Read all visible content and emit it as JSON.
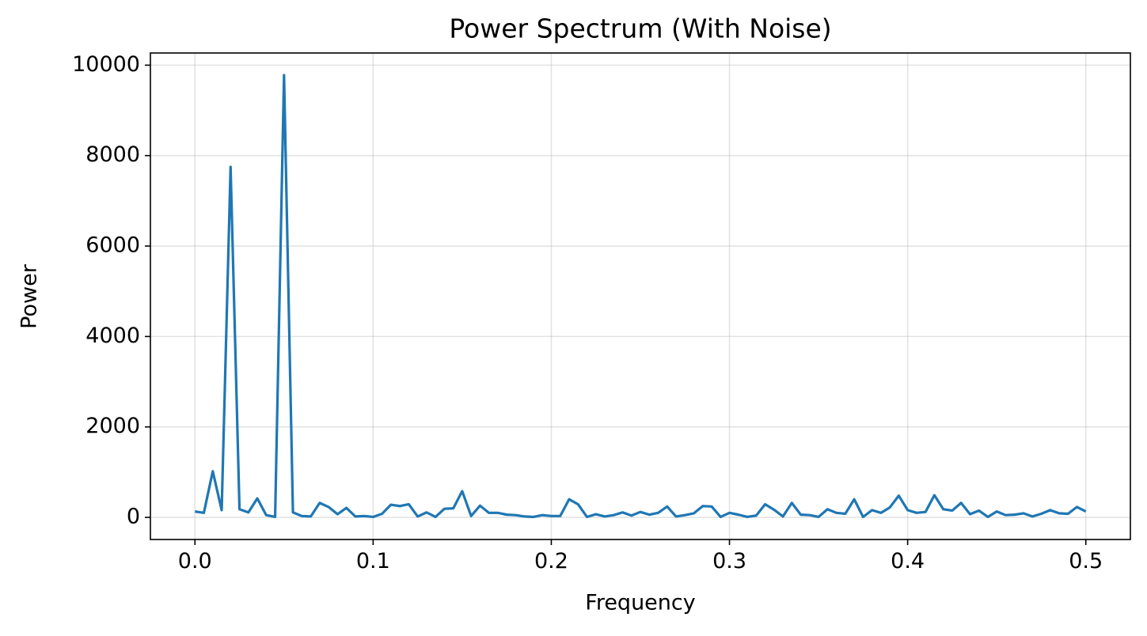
{
  "chart_data": {
    "type": "line",
    "title": "Power Spectrum (With Noise)",
    "x_label": "Frequency",
    "y_label": "Power",
    "x": [
      0.0,
      0.005,
      0.01,
      0.015,
      0.02,
      0.025,
      0.03,
      0.035,
      0.04,
      0.045,
      0.05,
      0.055,
      0.06,
      0.065,
      0.07,
      0.075,
      0.08,
      0.085,
      0.09,
      0.095,
      0.1,
      0.105,
      0.11,
      0.115,
      0.12,
      0.125,
      0.13,
      0.135,
      0.14,
      0.145,
      0.15,
      0.155,
      0.16,
      0.165,
      0.17,
      0.175,
      0.18,
      0.185,
      0.19,
      0.195,
      0.2,
      0.205,
      0.21,
      0.215,
      0.22,
      0.225,
      0.23,
      0.235,
      0.24,
      0.245,
      0.25,
      0.255,
      0.26,
      0.265,
      0.27,
      0.275,
      0.28,
      0.285,
      0.29,
      0.295,
      0.3,
      0.305,
      0.31,
      0.315,
      0.32,
      0.325,
      0.33,
      0.335,
      0.34,
      0.345,
      0.35,
      0.355,
      0.36,
      0.365,
      0.37,
      0.375,
      0.38,
      0.385,
      0.39,
      0.395,
      0.4,
      0.405,
      0.41,
      0.415,
      0.42,
      0.425,
      0.43,
      0.435,
      0.44,
      0.445,
      0.45,
      0.455,
      0.46,
      0.465,
      0.47,
      0.475,
      0.48,
      0.485,
      0.49,
      0.495,
      0.5
    ],
    "series": [
      {
        "name": "Power",
        "color": "#1f77b4",
        "values": [
          130,
          100,
          1020,
          160,
          7750,
          180,
          110,
          420,
          50,
          10,
          9780,
          110,
          30,
          20,
          320,
          230,
          70,
          210,
          20,
          30,
          10,
          80,
          280,
          250,
          290,
          20,
          110,
          10,
          190,
          200,
          580,
          30,
          260,
          100,
          100,
          60,
          50,
          20,
          10,
          50,
          30,
          30,
          400,
          290,
          10,
          70,
          20,
          50,
          110,
          40,
          120,
          60,
          100,
          240,
          20,
          50,
          90,
          250,
          240,
          10,
          100,
          60,
          10,
          40,
          290,
          170,
          20,
          320,
          60,
          50,
          10,
          180,
          100,
          80,
          400,
          10,
          160,
          100,
          220,
          480,
          160,
          100,
          120,
          490,
          180,
          150,
          320,
          70,
          150,
          10,
          130,
          50,
          60,
          90,
          20,
          80,
          160,
          90,
          80,
          230,
          130
        ]
      }
    ],
    "xlim": [
      -0.025,
      0.525
    ],
    "xticks": [
      {
        "value": 0,
        "label": "0.0"
      },
      0.1,
      0.2,
      0.3,
      0.4,
      0.5
    ],
    "ylim": [
      -489,
      10269
    ],
    "yticks": [
      0,
      2000,
      4000,
      6000,
      8000,
      10000
    ],
    "grid": true
  }
}
